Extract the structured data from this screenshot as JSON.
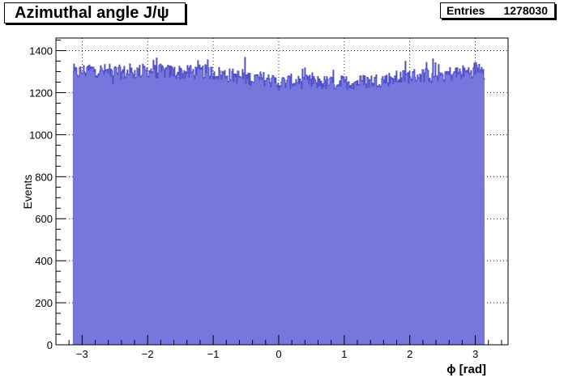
{
  "title": "Azimuthal angle J/ψ",
  "stats": {
    "label": "Entries",
    "value": "1278030"
  },
  "chart_data": {
    "type": "bar",
    "title": "Azimuthal angle J/ψ",
    "xlabel": "ϕ [rad]",
    "ylabel": "Events",
    "xlim": [
      -3.4,
      3.5
    ],
    "ylim": [
      0,
      1460
    ],
    "xticks": [
      -3,
      -2,
      -1,
      0,
      1,
      2,
      3
    ],
    "xtick_labels": [
      "−3",
      "−2",
      "−1",
      "0",
      "1",
      "2",
      "3"
    ],
    "yticks": [
      0,
      200,
      400,
      600,
      800,
      1000,
      1200,
      1400
    ],
    "ytick_labels": [
      "0",
      "200",
      "400",
      "600",
      "800",
      "1000",
      "1200",
      "1400"
    ],
    "grid": true,
    "fill_color": "#7676dc",
    "line_color": "#5050c8",
    "bin_range": [
      -3.1416,
      3.1416
    ],
    "profile_x": [
      -3.14,
      -2.9,
      -2.6,
      -2.3,
      -2.0,
      -1.7,
      -1.4,
      -1.1,
      -0.8,
      -0.5,
      -0.2,
      0.0,
      0.2,
      0.5,
      0.8,
      1.1,
      1.4,
      1.7,
      2.0,
      2.3,
      2.6,
      2.9,
      3.1,
      3.14
    ],
    "profile_y": [
      1290,
      1310,
      1300,
      1295,
      1305,
      1300,
      1295,
      1300,
      1285,
      1270,
      1265,
      1245,
      1255,
      1250,
      1245,
      1250,
      1255,
      1265,
      1280,
      1285,
      1290,
      1300,
      1330,
      1290
    ]
  }
}
